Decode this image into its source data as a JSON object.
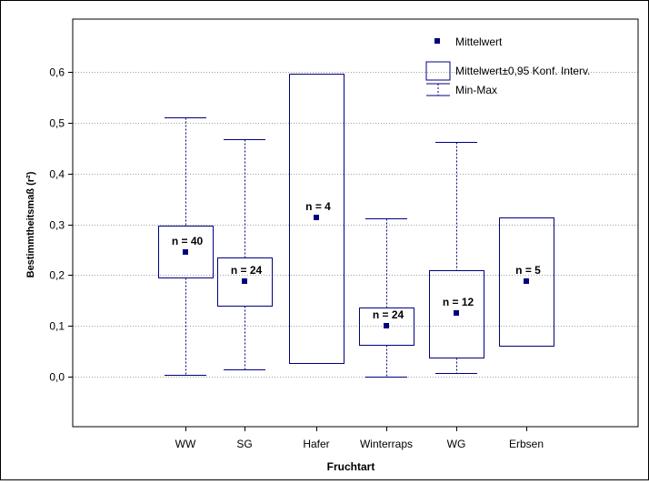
{
  "chart_data": {
    "type": "boxplot",
    "xlabel": "Fruchtart",
    "ylabel": "Bestimmtheitsmaß (r²)",
    "ylim": [
      -0.1,
      0.7
    ],
    "yticks": [
      "0,0",
      "0,1",
      "0,2",
      "0,3",
      "0,4",
      "0,5",
      "0,6"
    ],
    "ytick_values": [
      0.0,
      0.1,
      0.2,
      0.3,
      0.4,
      0.5,
      0.6
    ],
    "grid": "horizontal dotted",
    "legend_position": "top-right",
    "legend": [
      {
        "key": "mean",
        "label": "Mittelwert"
      },
      {
        "key": "ci",
        "label": "Mittelwert±0,95 Konf. Interv."
      },
      {
        "key": "minmax",
        "label": "Min-Max"
      }
    ],
    "categories": [
      "WW",
      "SG",
      "Hafer",
      "Winterraps",
      "WG",
      "Erbsen"
    ],
    "groups": [
      {
        "name": "WW",
        "mean": 0.245,
        "ci_low": 0.196,
        "ci_high": 0.297,
        "min": 0.003,
        "max": 0.51,
        "n_label": "n = 40"
      },
      {
        "name": "SG",
        "mean": 0.188,
        "ci_low": 0.14,
        "ci_high": 0.235,
        "min": 0.015,
        "max": 0.467,
        "n_label": "n = 24"
      },
      {
        "name": "Hafer",
        "mean": 0.313,
        "ci_low": 0.027,
        "ci_high": 0.597,
        "min": 0.027,
        "max": 0.597,
        "n_label": "n = 4"
      },
      {
        "name": "Winterraps",
        "mean": 0.101,
        "ci_low": 0.063,
        "ci_high": 0.137,
        "min": 0.0,
        "max": 0.312,
        "n_label": "n = 24"
      },
      {
        "name": "WG",
        "mean": 0.125,
        "ci_low": 0.037,
        "ci_high": 0.21,
        "min": 0.008,
        "max": 0.462,
        "n_label": "n = 12"
      },
      {
        "name": "Erbsen",
        "mean": 0.188,
        "ci_low": 0.061,
        "ci_high": 0.313,
        "min": 0.061,
        "max": 0.313,
        "n_label": "n = 5"
      }
    ],
    "colors": {
      "series": "#000080",
      "grid": "#a0a0a0",
      "axis": "#000000"
    }
  }
}
